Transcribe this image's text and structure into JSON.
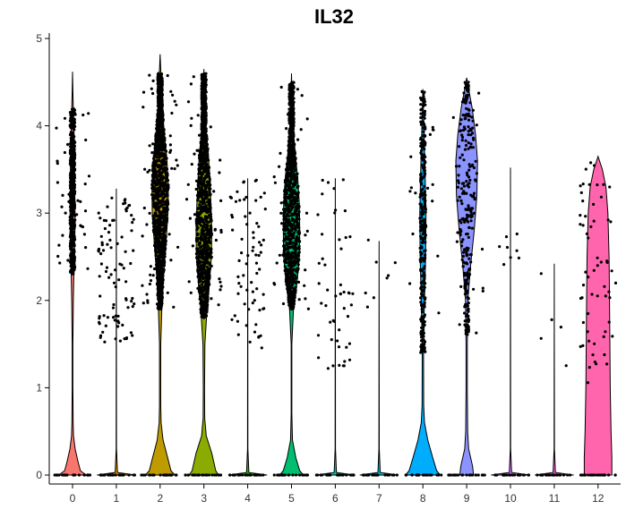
{
  "chart_data": {
    "type": "violin",
    "title": "IL32",
    "xlabel": "",
    "ylabel": "",
    "ylim": [
      0,
      5
    ],
    "y_ticks": [
      "0",
      "1",
      "2",
      "3",
      "4",
      "5"
    ],
    "categories": [
      "0",
      "1",
      "2",
      "3",
      "4",
      "5",
      "6",
      "7",
      "8",
      "9",
      "10",
      "11",
      "12"
    ],
    "colors": [
      "#F8766D",
      "#E18A00",
      "#BE9C00",
      "#8CAB00",
      "#24B700",
      "#00BE70",
      "#00C1AB",
      "#00BBDA",
      "#00ACFC",
      "#8B93FF",
      "#D575FE",
      "#F962DD",
      "#FF65AC"
    ],
    "series": [
      {
        "cluster": "0",
        "color": "#F8766D",
        "max": 4.62,
        "violin": [
          [
            0,
            0.7
          ],
          [
            0.05,
            0.4
          ],
          [
            0.15,
            0.28
          ],
          [
            0.3,
            0.13
          ],
          [
            0.45,
            0.05
          ],
          [
            0.6,
            0.03
          ],
          [
            1.0,
            0.02
          ],
          [
            1.5,
            0.02
          ],
          [
            2.0,
            0.04
          ],
          [
            2.3,
            0.07
          ],
          [
            2.6,
            0.1
          ],
          [
            2.9,
            0.13
          ],
          [
            3.2,
            0.12
          ],
          [
            3.5,
            0.11
          ],
          [
            3.8,
            0.09
          ],
          [
            4.1,
            0.05
          ],
          [
            4.4,
            0.02
          ],
          [
            4.62,
            0
          ]
        ],
        "dense": [
          2.3,
          4.2
        ],
        "n_dense": 520,
        "n_sparse": 40
      },
      {
        "cluster": "1",
        "color": "#E18A00",
        "max": 3.28,
        "violin": [
          [
            0,
            0.98
          ],
          [
            0.03,
            0.06
          ],
          [
            0.3,
            0.01
          ],
          [
            3.28,
            0
          ]
        ],
        "dense": [
          1.5,
          3.2
        ],
        "n_dense": 0,
        "n_sparse": 90
      },
      {
        "cluster": "2",
        "color": "#BE9C00",
        "max": 4.82,
        "violin": [
          [
            0,
            0.75
          ],
          [
            0.05,
            0.55
          ],
          [
            0.2,
            0.38
          ],
          [
            0.4,
            0.15
          ],
          [
            0.6,
            0.05
          ],
          [
            0.8,
            0.03
          ],
          [
            1.5,
            0.03
          ],
          [
            2.0,
            0.1
          ],
          [
            2.3,
            0.18
          ],
          [
            2.6,
            0.28
          ],
          [
            3.0,
            0.4
          ],
          [
            3.3,
            0.42
          ],
          [
            3.6,
            0.35
          ],
          [
            3.9,
            0.22
          ],
          [
            4.2,
            0.12
          ],
          [
            4.5,
            0.06
          ],
          [
            4.82,
            0
          ]
        ],
        "dense": [
          1.9,
          4.6
        ],
        "n_dense": 1250,
        "n_sparse": 60
      },
      {
        "cluster": "3",
        "color": "#8CAB00",
        "max": 4.65,
        "violin": [
          [
            0,
            0.75
          ],
          [
            0.05,
            0.6
          ],
          [
            0.25,
            0.4
          ],
          [
            0.45,
            0.12
          ],
          [
            0.65,
            0.04
          ],
          [
            1.0,
            0.03
          ],
          [
            1.5,
            0.05
          ],
          [
            1.9,
            0.16
          ],
          [
            2.2,
            0.28
          ],
          [
            2.5,
            0.38
          ],
          [
            2.8,
            0.4
          ],
          [
            3.1,
            0.36
          ],
          [
            3.4,
            0.3
          ],
          [
            3.7,
            0.22
          ],
          [
            4.0,
            0.1
          ],
          [
            4.3,
            0.05
          ],
          [
            4.65,
            0
          ]
        ],
        "dense": [
          1.8,
          4.6
        ],
        "n_dense": 1100,
        "n_sparse": 50
      },
      {
        "cluster": "4",
        "color": "#24B700",
        "max": 3.4,
        "violin": [
          [
            0,
            0.98
          ],
          [
            0.03,
            0.06
          ],
          [
            0.3,
            0.01
          ],
          [
            3.4,
            0
          ]
        ],
        "dense": [
          1.4,
          3.4
        ],
        "n_dense": 0,
        "n_sparse": 70
      },
      {
        "cluster": "5",
        "color": "#00BE70",
        "max": 4.6,
        "violin": [
          [
            0,
            0.6
          ],
          [
            0.05,
            0.42
          ],
          [
            0.2,
            0.22
          ],
          [
            0.4,
            0.05
          ],
          [
            0.7,
            0.02
          ],
          [
            1.5,
            0.02
          ],
          [
            1.9,
            0.1
          ],
          [
            2.2,
            0.28
          ],
          [
            2.5,
            0.4
          ],
          [
            2.8,
            0.42
          ],
          [
            3.1,
            0.4
          ],
          [
            3.4,
            0.32
          ],
          [
            3.7,
            0.18
          ],
          [
            4.0,
            0.08
          ],
          [
            4.3,
            0.03
          ],
          [
            4.6,
            0
          ]
        ],
        "dense": [
          1.9,
          4.5
        ],
        "n_dense": 950,
        "n_sparse": 40
      },
      {
        "cluster": "6",
        "color": "#00C1AB",
        "max": 3.4,
        "violin": [
          [
            0,
            0.98
          ],
          [
            0.03,
            0.06
          ],
          [
            0.3,
            0.01
          ],
          [
            3.4,
            0
          ]
        ],
        "dense": [
          1.2,
          3.4
        ],
        "n_dense": 0,
        "n_sparse": 50
      },
      {
        "cluster": "7",
        "color": "#00BBDA",
        "max": 2.68,
        "violin": [
          [
            0,
            0.98
          ],
          [
            0.03,
            0.06
          ],
          [
            0.3,
            0.01
          ],
          [
            2.68,
            0
          ]
        ],
        "dense": [
          1.8,
          2.7
        ],
        "n_dense": 0,
        "n_sparse": 8
      },
      {
        "cluster": "8",
        "color": "#00ACFC",
        "max": 4.42,
        "violin": [
          [
            0,
            0.88
          ],
          [
            0.05,
            0.7
          ],
          [
            0.2,
            0.5
          ],
          [
            0.4,
            0.25
          ],
          [
            0.6,
            0.08
          ],
          [
            0.8,
            0.04
          ],
          [
            1.5,
            0.03
          ],
          [
            2.0,
            0.08
          ],
          [
            2.5,
            0.14
          ],
          [
            3.0,
            0.16
          ],
          [
            3.5,
            0.11
          ],
          [
            4.0,
            0.05
          ],
          [
            4.42,
            0
          ]
        ],
        "dense": [
          1.4,
          4.4
        ],
        "n_dense": 300,
        "n_sparse": 20
      },
      {
        "cluster": "9",
        "color": "#8B93FF",
        "max": 4.55,
        "violin": [
          [
            0,
            0.35
          ],
          [
            0.1,
            0.3
          ],
          [
            0.3,
            0.1
          ],
          [
            0.5,
            0.05
          ],
          [
            1.0,
            0.03
          ],
          [
            1.5,
            0.03
          ],
          [
            2.0,
            0.06
          ],
          [
            2.4,
            0.2
          ],
          [
            2.8,
            0.38
          ],
          [
            3.2,
            0.52
          ],
          [
            3.6,
            0.55
          ],
          [
            3.9,
            0.45
          ],
          [
            4.2,
            0.28
          ],
          [
            4.4,
            0.12
          ],
          [
            4.55,
            0
          ]
        ],
        "dense": [
          1.6,
          4.5
        ],
        "n_dense": 260,
        "n_sparse": 20
      },
      {
        "cluster": "10",
        "color": "#D575FE",
        "max": 3.52,
        "violin": [
          [
            0,
            0.98
          ],
          [
            0.03,
            0.06
          ],
          [
            0.3,
            0.01
          ],
          [
            3.52,
            0
          ]
        ],
        "dense": [
          2.3,
          3.5
        ],
        "n_dense": 0,
        "n_sparse": 8
      },
      {
        "cluster": "11",
        "color": "#F962DD",
        "max": 2.42,
        "violin": [
          [
            0,
            0.98
          ],
          [
            0.03,
            0.06
          ],
          [
            0.3,
            0.01
          ],
          [
            2.42,
            0
          ]
        ],
        "dense": [
          1.2,
          2.4
        ],
        "n_dense": 0,
        "n_sparse": 5
      },
      {
        "cluster": "12",
        "color": "#FF65AC",
        "max": 3.65,
        "violin": [
          [
            0,
            0.7
          ],
          [
            0.2,
            0.7
          ],
          [
            0.5,
            0.66
          ],
          [
            1.0,
            0.62
          ],
          [
            1.5,
            0.6
          ],
          [
            2.0,
            0.58
          ],
          [
            2.5,
            0.56
          ],
          [
            3.0,
            0.5
          ],
          [
            3.3,
            0.4
          ],
          [
            3.5,
            0.22
          ],
          [
            3.65,
            0
          ]
        ],
        "dense": [
          1.0,
          3.6
        ],
        "n_dense": 0,
        "n_sparse": 60
      }
    ]
  }
}
